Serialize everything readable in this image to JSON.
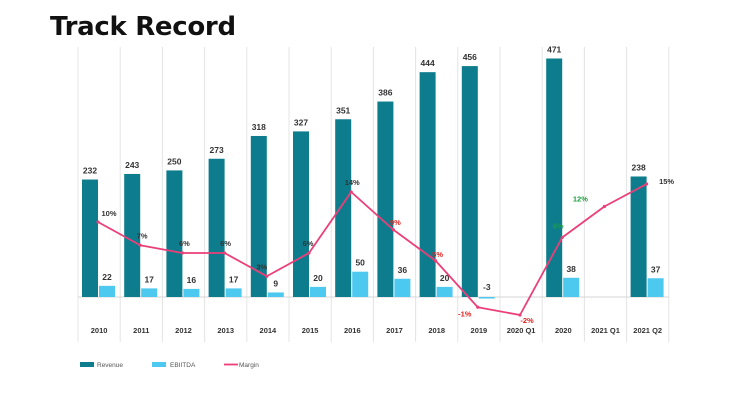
{
  "title": "Track Record",
  "chart_data": {
    "type": "bar",
    "categories": [
      "2010",
      "2011",
      "2012",
      "2013",
      "2014",
      "2015",
      "2016",
      "2017",
      "2018",
      "2019",
      "2020 Q1",
      "2020",
      "2021 Q1",
      "2021 Q2"
    ],
    "series": [
      {
        "name": "Revenue",
        "type": "bar",
        "color": "#0d7d8e",
        "values": [
          232,
          243,
          250,
          273,
          318,
          327,
          351,
          386,
          444,
          456,
          null,
          471,
          null,
          238
        ],
        "labels": [
          "232",
          "243",
          "250",
          "273",
          "318",
          "327",
          "351",
          "386",
          "444",
          "456",
          "",
          "471",
          "",
          "238"
        ]
      },
      {
        "name": "EBIITDA",
        "type": "bar",
        "color": "#4dc8ef",
        "values": [
          22,
          17,
          16,
          17,
          9,
          20,
          50,
          36,
          20,
          -3,
          null,
          38,
          null,
          37
        ],
        "labels": [
          "22",
          "17",
          "16",
          "17",
          "9",
          "20",
          "50",
          "36",
          "20",
          "-3",
          "",
          "38",
          "",
          "37"
        ]
      },
      {
        "name": "Margin",
        "type": "line",
        "color": "#ec3f78",
        "values": [
          10,
          7,
          6,
          6,
          3,
          6,
          14,
          9,
          5,
          -1,
          -2,
          8,
          12,
          15
        ],
        "labels": [
          "10%",
          "7%",
          "6%",
          "6%",
          "3%",
          "6%",
          "14%",
          "9%",
          "5%",
          "-1%",
          "-2%",
          "8%",
          "12%",
          "15%"
        ],
        "label_colors": [
          "#333333",
          "#333333",
          "#333333",
          "#333333",
          "#333333",
          "#333333",
          "#333333",
          "#e0201e",
          "#e0201e",
          "#e0201e",
          "#e0201e",
          "#1a9e3a",
          "#1a9e3a",
          "#333333"
        ]
      }
    ],
    "ylim_bars": [
      0,
      470
    ],
    "ylim_margin": [
      -5,
      35
    ],
    "grid": "vertical",
    "legend": "bottom-left"
  }
}
